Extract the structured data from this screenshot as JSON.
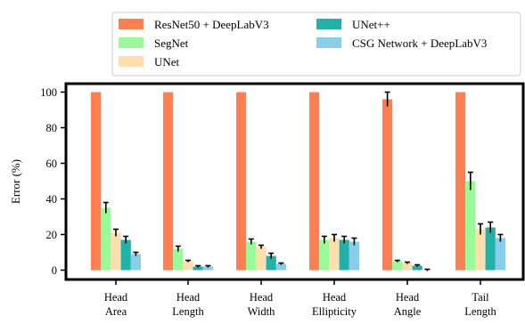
{
  "chart_data": {
    "type": "bar",
    "ylabel": "Error (%)",
    "ylim": [
      0,
      100
    ],
    "yticks": [
      0,
      20,
      40,
      60,
      80,
      100
    ],
    "categories": [
      [
        "Head",
        "Area"
      ],
      [
        "Head",
        "Length"
      ],
      [
        "Head",
        "Width"
      ],
      [
        "Head",
        "Ellipticity"
      ],
      [
        "Head",
        "Angle"
      ],
      [
        "Tail",
        "Length"
      ]
    ],
    "legend_position": "top",
    "series": [
      {
        "name": "ResNet50 + DeepLabV3",
        "color": "#ff7f50",
        "values": [
          100,
          100,
          100,
          100,
          96,
          100
        ],
        "errors": [
          0,
          0,
          0,
          0,
          4,
          0
        ]
      },
      {
        "name": "SegNet",
        "color": "#98fb98",
        "values": [
          35,
          12,
          16,
          17,
          5,
          50
        ],
        "errors": [
          3,
          1.5,
          1.5,
          2,
          0.5,
          5
        ]
      },
      {
        "name": "UNet",
        "color": "#ffdead",
        "values": [
          21,
          5,
          13,
          18,
          4,
          23
        ],
        "errors": [
          2,
          0.5,
          1,
          2,
          0.5,
          3
        ]
      },
      {
        "name": "UNet++",
        "color": "#20b2aa",
        "values": [
          17,
          2,
          8,
          17,
          2.5,
          24
        ],
        "errors": [
          2,
          0.5,
          1.5,
          2,
          0.5,
          3
        ]
      },
      {
        "name": "CSG Network + DeepLabV3",
        "color": "#87ceeb",
        "values": [
          9,
          2,
          3.5,
          16,
          0,
          18
        ],
        "errors": [
          1,
          0.5,
          0.5,
          2,
          0.5,
          2
        ]
      }
    ]
  }
}
